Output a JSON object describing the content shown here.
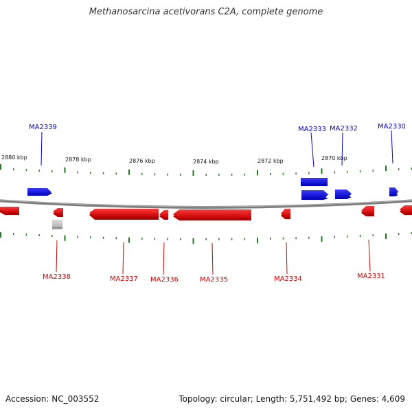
{
  "title": "Methanosarcina acetivorans C2A, complete genome",
  "accession": "Accession: NC_003552",
  "topology": "Topology: circular; Length: 5,751,492 bp; Genes: 4,609",
  "colors": {
    "forward": "#0000dd",
    "reverse": "#dd0000",
    "tick": "#227722",
    "backbone": "#7a7a7a",
    "unlabeled": "#c8c8c8"
  },
  "scale": {
    "labels": [
      "2880 kbp",
      "2878 kbp",
      "2876 kbp",
      "2874 kbp",
      "2872 kbp",
      "2870 kbp"
    ]
  },
  "genes": {
    "forward_labels": [
      "MA2339",
      "MA2333",
      "MA2332",
      "MA2330"
    ],
    "reverse_labels": [
      "MA2338",
      "MA2337",
      "MA2336",
      "MA2335",
      "MA2334",
      "MA2331"
    ]
  }
}
